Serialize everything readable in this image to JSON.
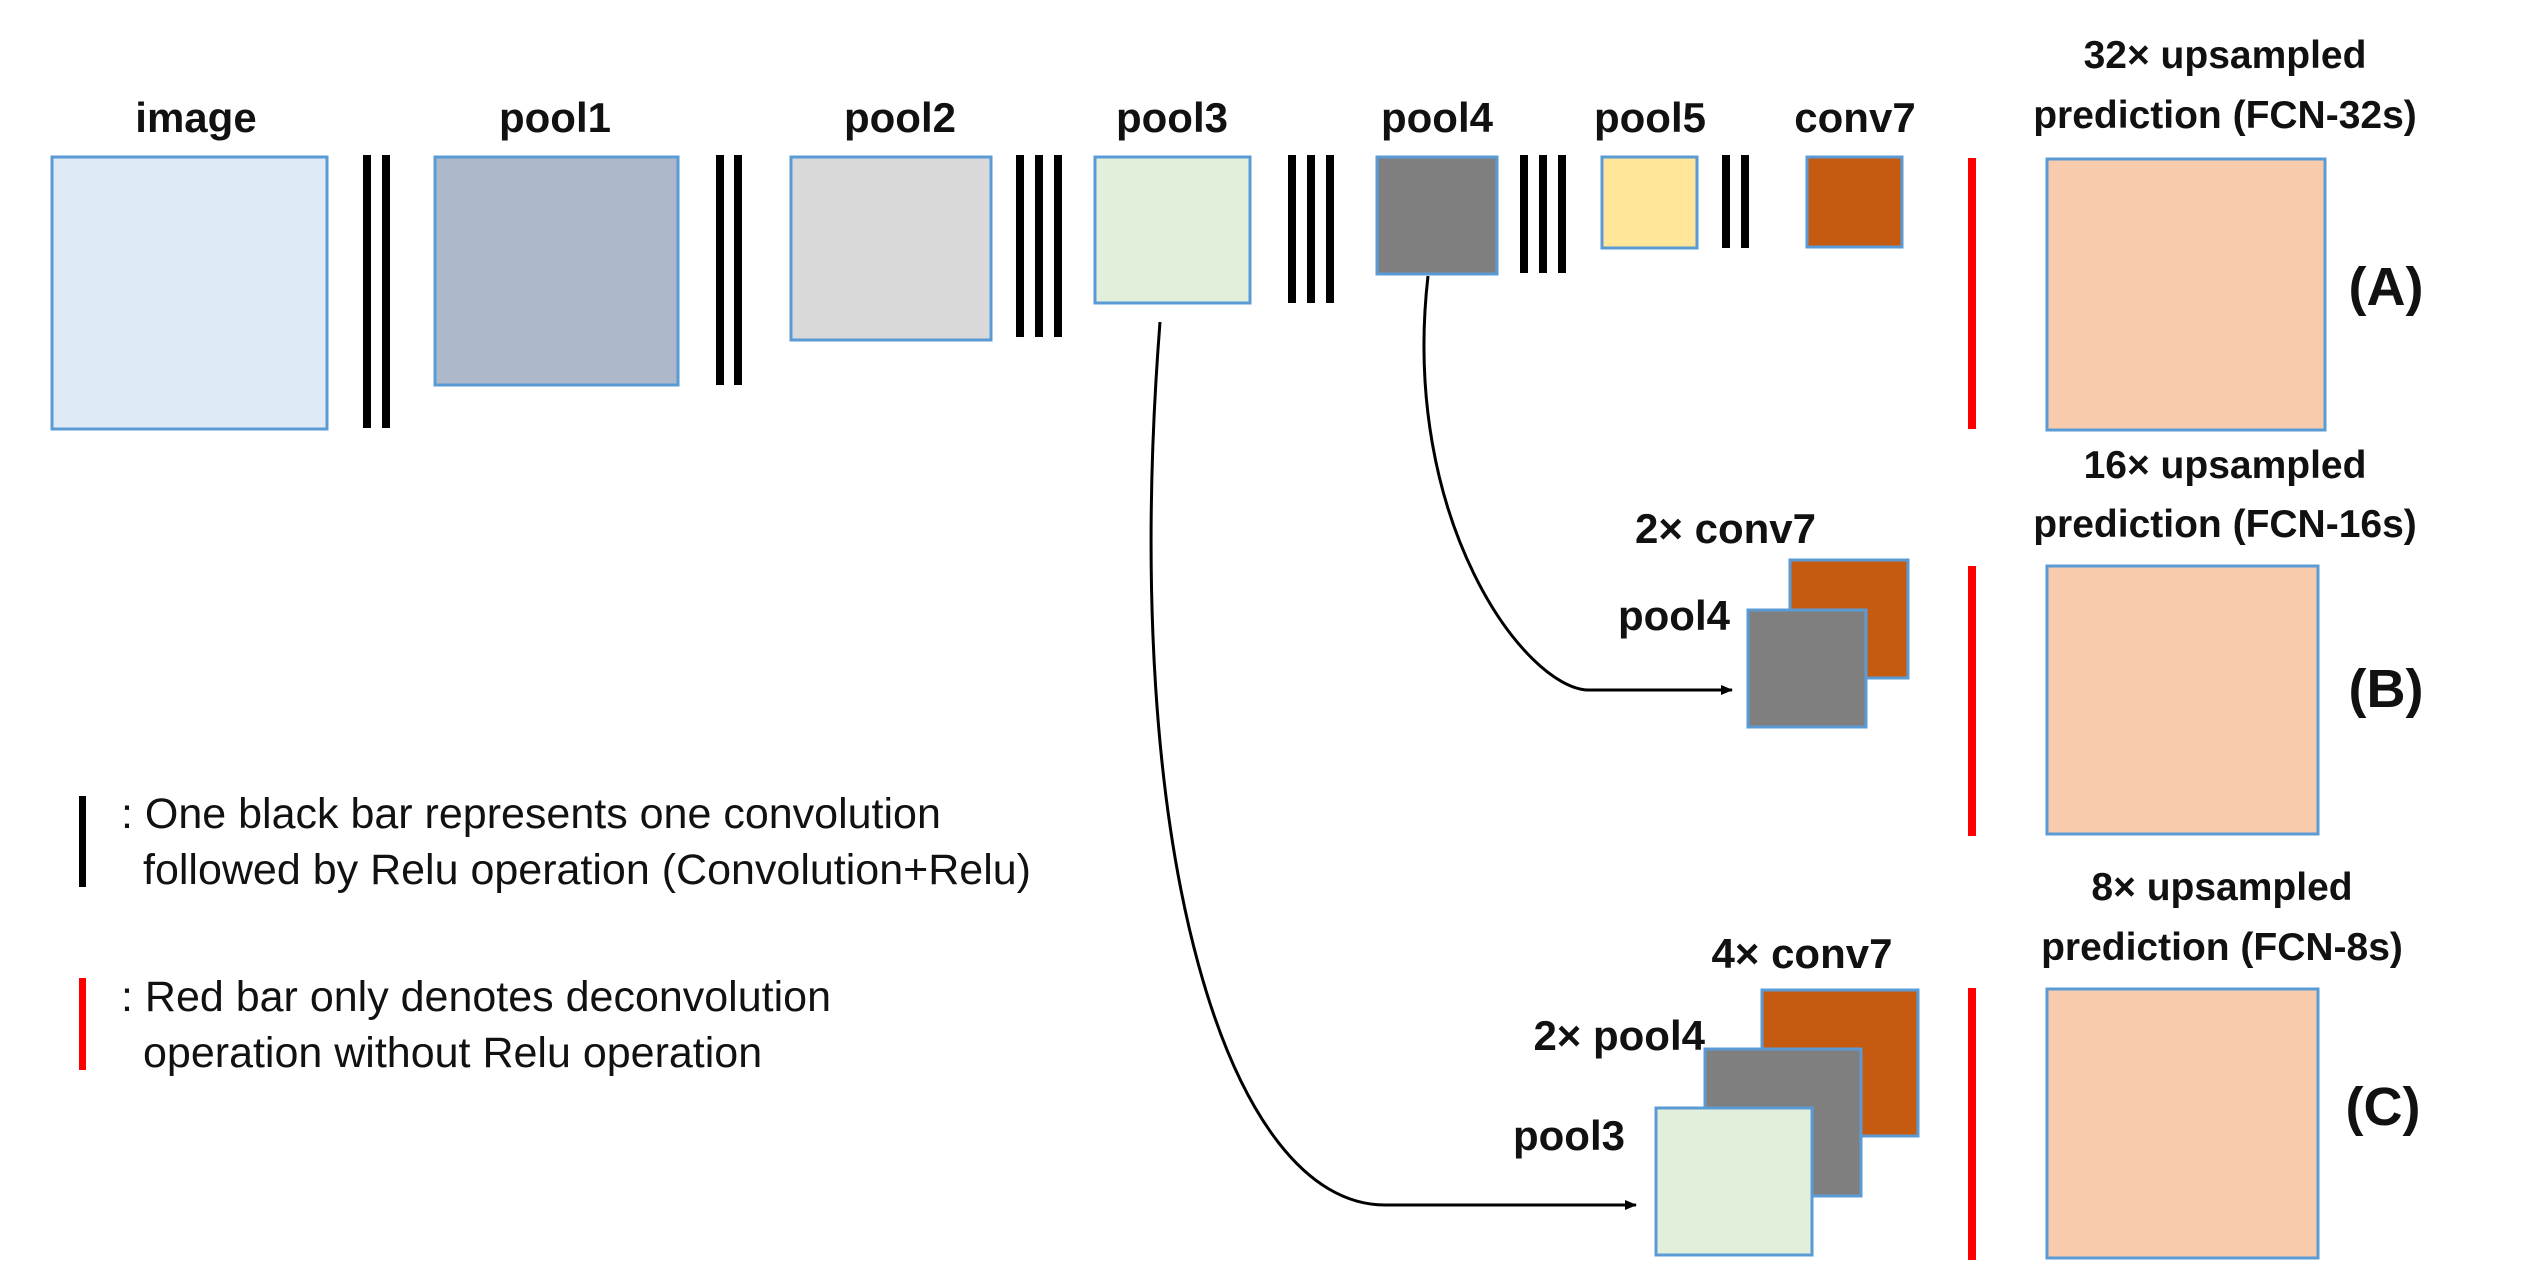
{
  "colors": {
    "image": "#deebf7",
    "pool1": "#adb9ca",
    "pool2": "#d9d9d9",
    "pool3": "#e2efda",
    "pool4": "#7f7f7f",
    "pool5": "#ffe699",
    "conv7": "#c55a11",
    "prediction": "#f8cbad",
    "border": "#5b9bd5",
    "conv_bar": "#000000",
    "deconv_bar": "#ff0000"
  },
  "top_row": {
    "image": "image",
    "pool1": "pool1",
    "pool2": "pool2",
    "pool3": "pool3",
    "pool4": "pool4",
    "pool5": "pool5",
    "conv7": "conv7"
  },
  "fusion_b": {
    "conv7": "2× conv7",
    "pool4": "pool4"
  },
  "fusion_c": {
    "conv7": "4× conv7",
    "pool4": "2× pool4",
    "pool3": "pool3"
  },
  "predictions": [
    {
      "line1": "32× upsampled",
      "line2": "prediction (FCN-32s)",
      "letter": "(A)"
    },
    {
      "line1": "16× upsampled",
      "line2": "prediction (FCN-16s)",
      "letter": "(B)"
    },
    {
      "line1": "8× upsampled",
      "line2": "prediction (FCN-8s)",
      "letter": "(C)"
    }
  ],
  "conv_bar_groups": [
    {
      "after": "image",
      "count": 2
    },
    {
      "after": "pool1",
      "count": 2
    },
    {
      "after": "pool2",
      "count": 3
    },
    {
      "after": "pool3",
      "count": 3
    },
    {
      "after": "pool4",
      "count": 3
    },
    {
      "after": "pool5",
      "count": 2
    }
  ],
  "legend": {
    "black_line1": ": One black bar represents one convolution",
    "black_line2": "followed by Relu operation (Convolution+Relu)",
    "red_line1": ": Red bar only denotes deconvolution",
    "red_line2": "operation without Relu operation"
  }
}
